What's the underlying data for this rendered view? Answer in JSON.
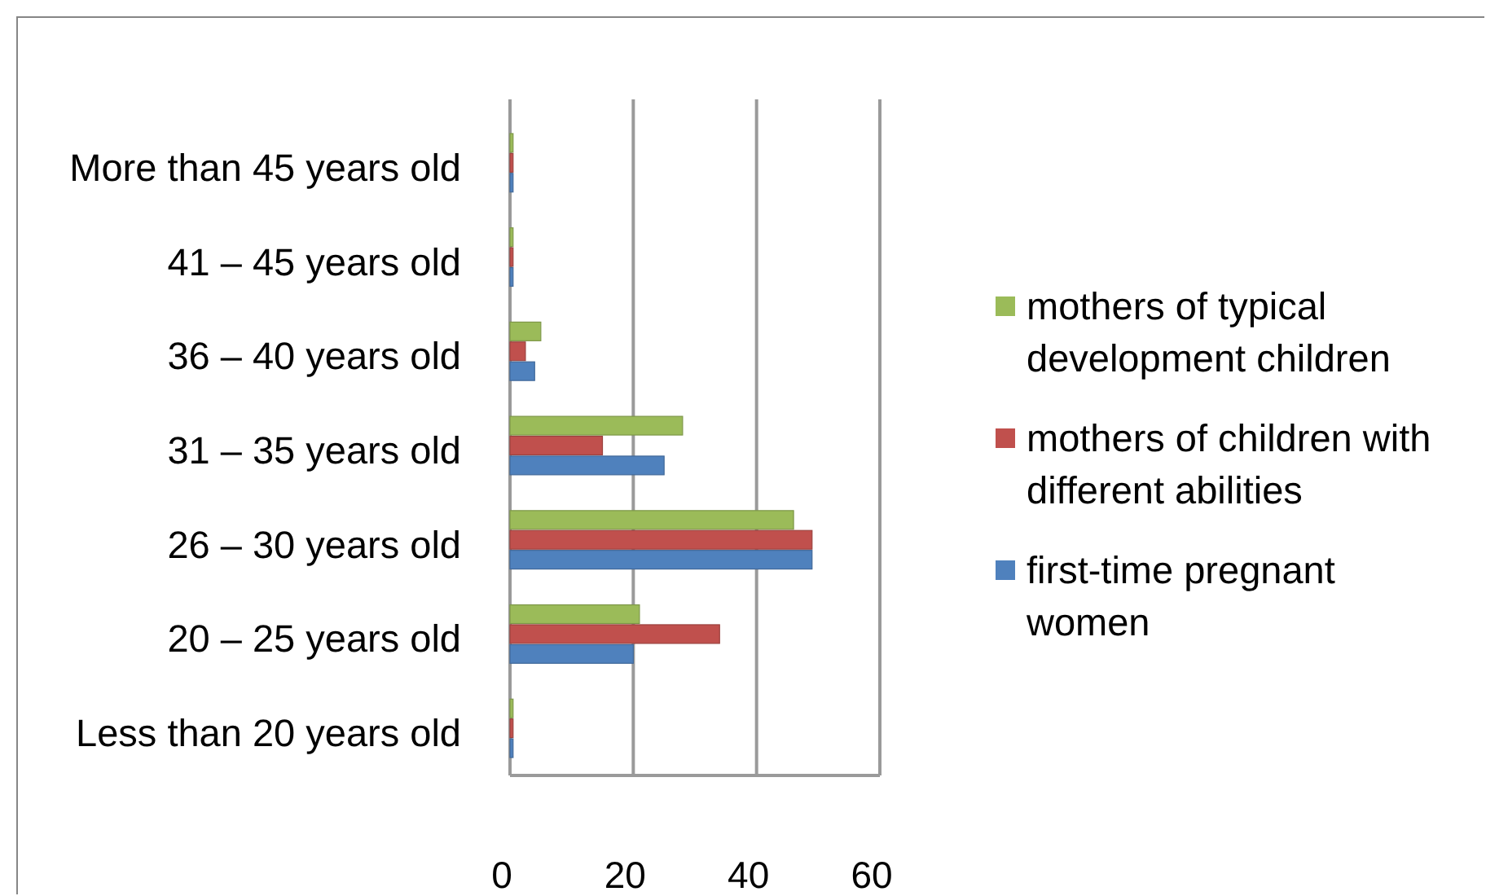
{
  "chart_data": {
    "type": "bar",
    "orientation": "horizontal",
    "categories": [
      "More than 45 years old",
      "41 – 45 years old",
      "36 – 40 years old",
      "31 – 35 years old",
      "26 – 30 years old",
      "20 – 25 years old",
      "Less than 20 years old"
    ],
    "series": [
      {
        "name": "mothers of typical development children",
        "color": "#9bbb59",
        "values": [
          0.5,
          0.5,
          5,
          28,
          46,
          21,
          0.5
        ]
      },
      {
        "name": "mothers of children with different abilities",
        "color": "#c0504d",
        "values": [
          0.5,
          0.5,
          2.5,
          15,
          49,
          34,
          0.5
        ]
      },
      {
        "name": "first-time pregnant women",
        "color": "#4f81bd",
        "values": [
          0.5,
          0.5,
          4,
          25,
          49,
          20,
          0.5
        ]
      }
    ],
    "xlim": [
      0,
      60
    ],
    "xticks": [
      0,
      20,
      40,
      60
    ],
    "grid": "x",
    "legend": "right"
  }
}
